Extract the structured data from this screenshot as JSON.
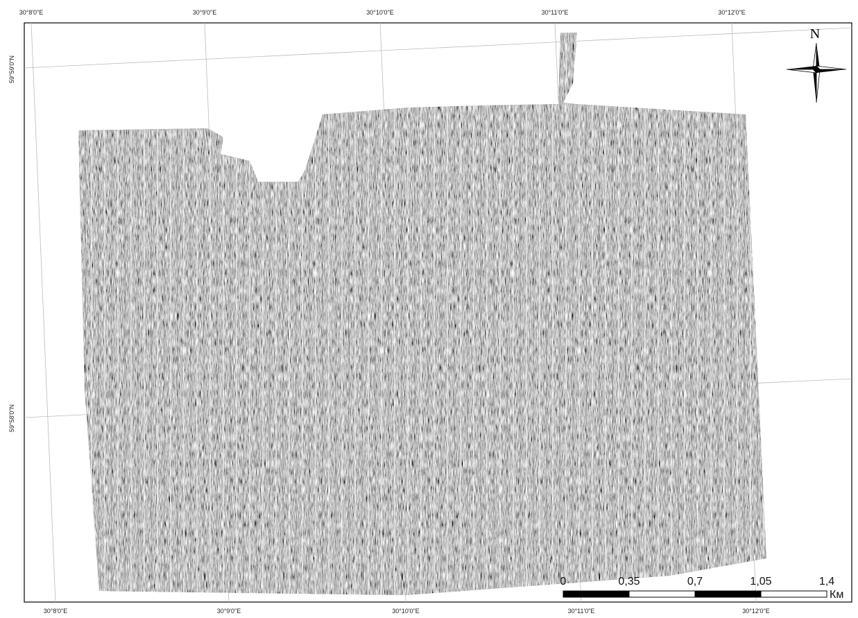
{
  "map": {
    "top_labels": [
      "30°8'0\"E",
      "30°9'0\"E",
      "30°10'0\"E",
      "30°11'0\"E",
      "30°12'0\"E"
    ],
    "bottom_labels": [
      "30°8'0\"E",
      "30°9'0\"E",
      "30°10'0\"E",
      "30°11'0\"E",
      "30°12'0\"E"
    ],
    "left_labels": [
      "59°59'0\"N",
      "59°58'0\"N"
    ],
    "north": "N",
    "scale_labels": [
      "0",
      "0,35",
      "0,7",
      "1,05",
      "1,4"
    ],
    "scale_unit": "Км"
  }
}
